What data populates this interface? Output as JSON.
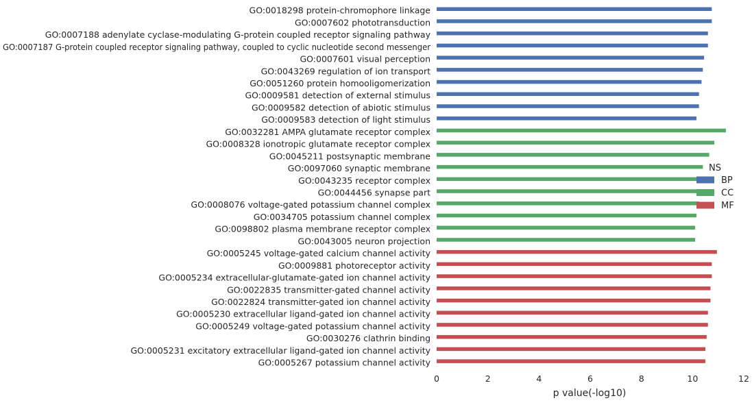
{
  "chart_data": {
    "type": "bar",
    "orientation": "horizontal",
    "xlabel": "p value(-log10)",
    "ylabel": "",
    "xlim": [
      0,
      12
    ],
    "x_ticks": [
      0,
      2,
      4,
      6,
      8,
      10,
      12
    ],
    "grid": false,
    "legend": {
      "title": "NS",
      "placement": "center-right",
      "entries": [
        {
          "label": "BP",
          "color": "#4c72b0"
        },
        {
          "label": "CC",
          "color": "#55a868"
        },
        {
          "label": "MF",
          "color": "#c44e52"
        }
      ]
    },
    "bars": [
      {
        "category": "GO:0018298 protein-chromophore linkage",
        "group": "BP",
        "value": 10.75
      },
      {
        "category": "GO:0007602 phototransduction",
        "group": "BP",
        "value": 10.75
      },
      {
        "category": "GO:0007188 adenylate cyclase-modulating G-protein coupled receptor signaling pathway",
        "group": "BP",
        "value": 10.6
      },
      {
        "category": "GO:0007187 G-protein coupled receptor signaling pathway, coupled to cyclic nucleotide second messenger",
        "group": "BP",
        "value": 10.6
      },
      {
        "category": "GO:0007601 visual perception",
        "group": "BP",
        "value": 10.45
      },
      {
        "category": "GO:0043269 regulation of ion transport",
        "group": "BP",
        "value": 10.4
      },
      {
        "category": "GO:0051260 protein homooligomerization",
        "group": "BP",
        "value": 10.35
      },
      {
        "category": "GO:0009581 detection of external stimulus",
        "group": "BP",
        "value": 10.25
      },
      {
        "category": "GO:0009582 detection of abiotic stimulus",
        "group": "BP",
        "value": 10.25
      },
      {
        "category": "GO:0009583 detection of light stimulus",
        "group": "BP",
        "value": 10.15
      },
      {
        "category": "GO:0032281 AMPA glutamate receptor complex",
        "group": "CC",
        "value": 11.3
      },
      {
        "category": "GO:0008328 ionotropic glutamate receptor complex",
        "group": "CC",
        "value": 10.85
      },
      {
        "category": "GO:0045211 postsynaptic membrane",
        "group": "CC",
        "value": 10.65
      },
      {
        "category": "GO:0097060 synaptic membrane",
        "group": "CC",
        "value": 10.4
      },
      {
        "category": "GO:0043235 receptor complex",
        "group": "CC",
        "value": 10.3
      },
      {
        "category": "GO:0044456 synapse part",
        "group": "CC",
        "value": 10.3
      },
      {
        "category": "GO:0008076 voltage-gated potassium channel complex",
        "group": "CC",
        "value": 10.25
      },
      {
        "category": "GO:0034705 potassium channel complex",
        "group": "CC",
        "value": 10.15
      },
      {
        "category": "GO:0098802 plasma membrane receptor complex",
        "group": "CC",
        "value": 10.1
      },
      {
        "category": "GO:0043005 neuron projection",
        "group": "CC",
        "value": 10.1
      },
      {
        "category": "GO:0005245 voltage-gated calcium channel activity",
        "group": "MF",
        "value": 10.95
      },
      {
        "category": "GO:0009881 photoreceptor activity",
        "group": "MF",
        "value": 10.75
      },
      {
        "category": "GO:0005234 extracellular-glutamate-gated ion channel activity",
        "group": "MF",
        "value": 10.75
      },
      {
        "category": "GO:0022835 transmitter-gated channel activity",
        "group": "MF",
        "value": 10.7
      },
      {
        "category": "GO:0022824 transmitter-gated ion channel activity",
        "group": "MF",
        "value": 10.7
      },
      {
        "category": "GO:0005230 extracellular ligand-gated ion channel activity",
        "group": "MF",
        "value": 10.6
      },
      {
        "category": "GO:0005249 voltage-gated potassium channel activity",
        "group": "MF",
        "value": 10.6
      },
      {
        "category": "GO:0030276 clathrin binding",
        "group": "MF",
        "value": 10.55
      },
      {
        "category": "GO:0005231 excitatory extracellular ligand-gated ion channel activity",
        "group": "MF",
        "value": 10.5
      },
      {
        "category": "GO:0005267 potassium channel activity",
        "group": "MF",
        "value": 10.5
      }
    ]
  }
}
